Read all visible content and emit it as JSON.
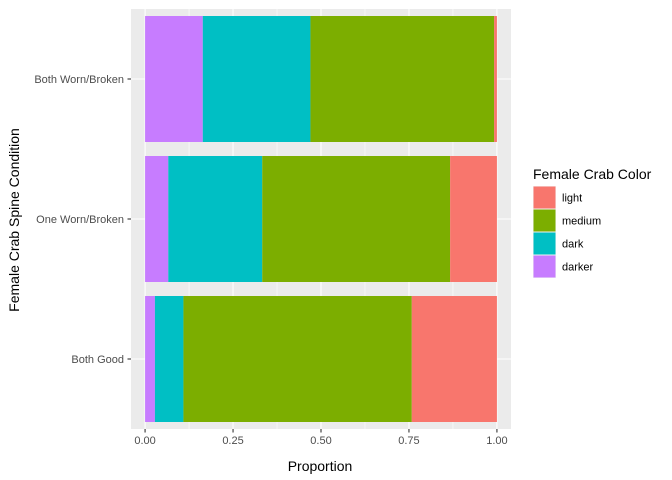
{
  "chart_data": {
    "type": "bar",
    "orientation": "horizontal",
    "stacked": true,
    "xlabel": "Proportion",
    "ylabel": "Female Crab Spine Condition",
    "xlim": [
      -0.04,
      1.04
    ],
    "xticks": [
      0,
      0.25,
      0.5,
      0.75,
      1.0
    ],
    "xtick_labels": [
      "0.00",
      "0.25",
      "0.50",
      "0.75",
      "1.00"
    ],
    "categories": [
      "Both Good",
      "One Worn/Broken",
      "Both Worn/Broken"
    ],
    "legend": {
      "title": "Female Crab Color",
      "position": "right"
    },
    "grid": true,
    "background": "#EBEBEB",
    "series": [
      {
        "name": "light",
        "color": "#F8766D",
        "values": [
          0.242,
          0.133,
          0.008
        ]
      },
      {
        "name": "medium",
        "color": "#7CAE00",
        "values": [
          0.649,
          0.534,
          0.522
        ]
      },
      {
        "name": "dark",
        "color": "#00BFC4",
        "values": [
          0.081,
          0.267,
          0.306
        ]
      },
      {
        "name": "darker",
        "color": "#C77CFF",
        "values": [
          0.028,
          0.066,
          0.164
        ]
      }
    ]
  }
}
